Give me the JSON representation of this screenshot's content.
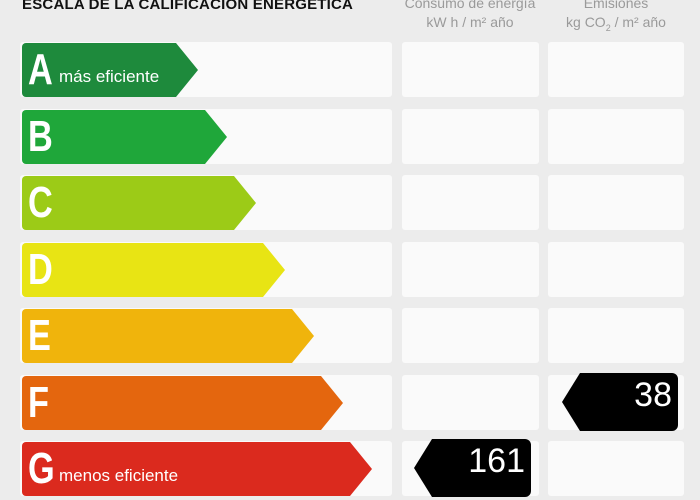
{
  "header": {
    "title": "ESCALA DE LA CALIFICACIÓN ENERGÉTICA",
    "col_energy_title": "Consumo de energía",
    "col_energy_unit": "kW h / m² año",
    "col_emissions_title": "Emisiones",
    "col_emissions_unit_pre": "kg CO",
    "col_emissions_unit_sub": "2",
    "col_emissions_unit_post": " / m² año"
  },
  "rows": [
    {
      "letter": "A",
      "note": "más eficiente",
      "color": "#1e8a3c"
    },
    {
      "letter": "B",
      "note": "",
      "color": "#1fa73a"
    },
    {
      "letter": "C",
      "note": "",
      "color": "#9ccb17"
    },
    {
      "letter": "D",
      "note": "",
      "color": "#e8e414"
    },
    {
      "letter": "E",
      "note": "",
      "color": "#f0b40c"
    },
    {
      "letter": "F",
      "note": "",
      "color": "#e4660e"
    },
    {
      "letter": "G",
      "note": "menos eficiente",
      "color": "#db2a1e"
    }
  ],
  "energy_consumption": {
    "value": "161",
    "rating": "G"
  },
  "emissions": {
    "value": "38",
    "rating": "F"
  }
}
